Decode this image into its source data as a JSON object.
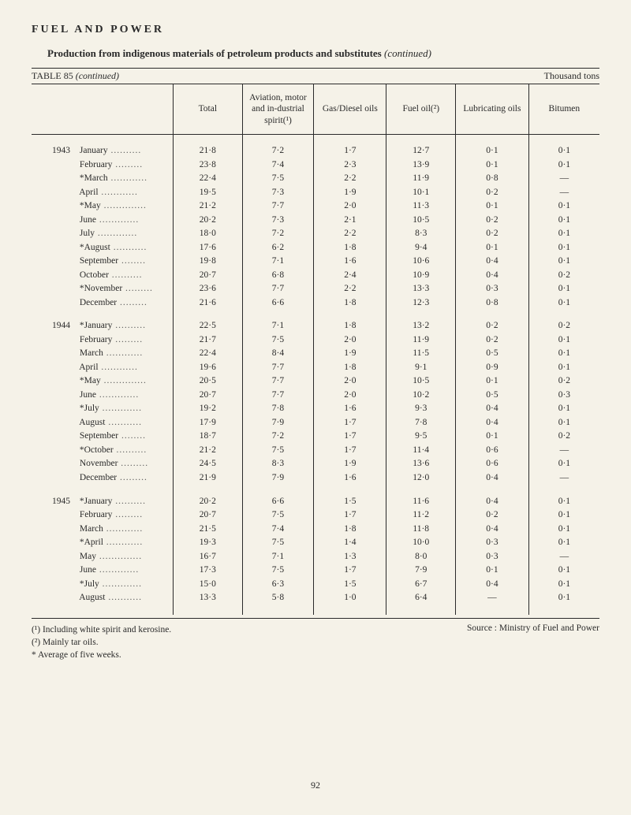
{
  "section_title": "FUEL AND POWER",
  "subtitle_main": "Production from indigenous materials of petroleum products and substitutes",
  "subtitle_paren": "(continued)",
  "table_label_left": "TABLE 85",
  "table_label_left_italic": "(continued)",
  "table_label_right": "Thousand tons",
  "columns": [
    "",
    "Total",
    "Aviation, motor and in-dustrial spirit(¹)",
    "Gas/Diesel oils",
    "Fuel oil(²)",
    "Lubricating oils",
    "Bitumen"
  ],
  "groups": [
    {
      "year": "1943",
      "rows": [
        {
          "m": "January",
          "v": [
            "21·8",
            "7·2",
            "1·7",
            "12·7",
            "0·1",
            "0·1"
          ]
        },
        {
          "m": "February",
          "v": [
            "23·8",
            "7·4",
            "2·3",
            "13·9",
            "0·1",
            "0·1"
          ]
        },
        {
          "m": "*March",
          "v": [
            "22·4",
            "7·5",
            "2·2",
            "11·9",
            "0·8",
            "—"
          ]
        },
        {
          "m": "April",
          "v": [
            "19·5",
            "7·3",
            "1·9",
            "10·1",
            "0·2",
            "—"
          ]
        },
        {
          "m": "*May",
          "v": [
            "21·2",
            "7·7",
            "2·0",
            "11·3",
            "0·1",
            "0·1"
          ]
        },
        {
          "m": "June",
          "v": [
            "20·2",
            "7·3",
            "2·1",
            "10·5",
            "0·2",
            "0·1"
          ]
        },
        {
          "m": "July",
          "v": [
            "18·0",
            "7·2",
            "2·2",
            "8·3",
            "0·2",
            "0·1"
          ]
        },
        {
          "m": "*August",
          "v": [
            "17·6",
            "6·2",
            "1·8",
            "9·4",
            "0·1",
            "0·1"
          ]
        },
        {
          "m": "September",
          "v": [
            "19·8",
            "7·1",
            "1·6",
            "10·6",
            "0·4",
            "0·1"
          ]
        },
        {
          "m": "October",
          "v": [
            "20·7",
            "6·8",
            "2·4",
            "10·9",
            "0·4",
            "0·2"
          ]
        },
        {
          "m": "*November",
          "v": [
            "23·6",
            "7·7",
            "2·2",
            "13·3",
            "0·3",
            "0·1"
          ]
        },
        {
          "m": "December",
          "v": [
            "21·6",
            "6·6",
            "1·8",
            "12·3",
            "0·8",
            "0·1"
          ]
        }
      ]
    },
    {
      "year": "1944",
      "rows": [
        {
          "m": "*January",
          "v": [
            "22·5",
            "7·1",
            "1·8",
            "13·2",
            "0·2",
            "0·2"
          ]
        },
        {
          "m": "February",
          "v": [
            "21·7",
            "7·5",
            "2·0",
            "11·9",
            "0·2",
            "0·1"
          ]
        },
        {
          "m": "March",
          "v": [
            "22·4",
            "8·4",
            "1·9",
            "11·5",
            "0·5",
            "0·1"
          ]
        },
        {
          "m": "April",
          "v": [
            "19·6",
            "7·7",
            "1·8",
            "9·1",
            "0·9",
            "0·1"
          ]
        },
        {
          "m": "*May",
          "v": [
            "20·5",
            "7·7",
            "2·0",
            "10·5",
            "0·1",
            "0·2"
          ]
        },
        {
          "m": "June",
          "v": [
            "20·7",
            "7·7",
            "2·0",
            "10·2",
            "0·5",
            "0·3"
          ]
        },
        {
          "m": "*July",
          "v": [
            "19·2",
            "7·8",
            "1·6",
            "9·3",
            "0·4",
            "0·1"
          ]
        },
        {
          "m": "August",
          "v": [
            "17·9",
            "7·9",
            "1·7",
            "7·8",
            "0·4",
            "0·1"
          ]
        },
        {
          "m": "September",
          "v": [
            "18·7",
            "7·2",
            "1·7",
            "9·5",
            "0·1",
            "0·2"
          ]
        },
        {
          "m": "*October",
          "v": [
            "21·2",
            "7·5",
            "1·7",
            "11·4",
            "0·6",
            "—"
          ]
        },
        {
          "m": "November",
          "v": [
            "24·5",
            "8·3",
            "1·9",
            "13·6",
            "0·6",
            "0·1"
          ]
        },
        {
          "m": "December",
          "v": [
            "21·9",
            "7·9",
            "1·6",
            "12·0",
            "0·4",
            "—"
          ]
        }
      ]
    },
    {
      "year": "1945",
      "rows": [
        {
          "m": "*January",
          "v": [
            "20·2",
            "6·6",
            "1·5",
            "11·6",
            "0·4",
            "0·1"
          ]
        },
        {
          "m": "February",
          "v": [
            "20·7",
            "7·5",
            "1·7",
            "11·2",
            "0·2",
            "0·1"
          ]
        },
        {
          "m": "March",
          "v": [
            "21·5",
            "7·4",
            "1·8",
            "11·8",
            "0·4",
            "0·1"
          ]
        },
        {
          "m": "*April",
          "v": [
            "19·3",
            "7·5",
            "1·4",
            "10·0",
            "0·3",
            "0·1"
          ]
        },
        {
          "m": "May",
          "v": [
            "16·7",
            "7·1",
            "1·3",
            "8·0",
            "0·3",
            "—"
          ]
        },
        {
          "m": "June",
          "v": [
            "17·3",
            "7·5",
            "1·7",
            "7·9",
            "0·1",
            "0·1"
          ]
        },
        {
          "m": "*July",
          "v": [
            "15·0",
            "6·3",
            "1·5",
            "6·7",
            "0·4",
            "0·1"
          ]
        },
        {
          "m": "August",
          "v": [
            "13·3",
            "5·8",
            "1·0",
            "6·4",
            "—",
            "0·1"
          ]
        }
      ]
    }
  ],
  "footnote1": "(¹) Including white spirit and kerosine.",
  "footnote2": "(²) Mainly tar oils.",
  "footnote3": "* Average of five weeks.",
  "source": "Source : Ministry of Fuel and Power",
  "page_number": "92"
}
